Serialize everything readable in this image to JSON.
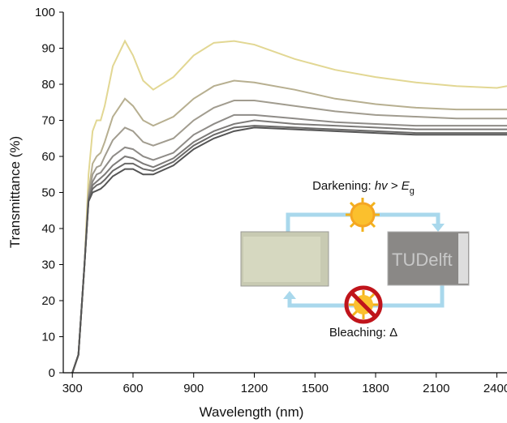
{
  "chart_data": {
    "type": "line",
    "xlabel": "Wavelength (nm)",
    "ylabel": "Transmittance (%)",
    "x": [
      300,
      330,
      360,
      380,
      400,
      420,
      440,
      460,
      500,
      560,
      600,
      650,
      700,
      800,
      900,
      1000,
      1100,
      1200,
      1400,
      1600,
      1800,
      2000,
      2200,
      2400,
      2450
    ],
    "series": [
      {
        "color": "#e2d793",
        "values": [
          0,
          5,
          30,
          55,
          67,
          70,
          70,
          74,
          85,
          92,
          88,
          81,
          78.5,
          82,
          88,
          91.5,
          92,
          91,
          87,
          84,
          82,
          80.5,
          79.5,
          79,
          79.5
        ]
      },
      {
        "color": "#b7af90",
        "values": [
          0,
          5,
          30,
          50,
          58,
          60,
          61,
          64,
          71,
          76,
          74,
          70,
          68.5,
          71,
          76,
          79.5,
          81,
          80.5,
          78.5,
          76,
          74.5,
          73.5,
          73,
          73,
          73
        ]
      },
      {
        "color": "#a19c8f",
        "values": [
          0,
          5,
          30,
          49,
          55,
          57,
          57.5,
          60,
          64.5,
          68,
          67,
          64,
          63,
          65,
          70,
          73.5,
          75.5,
          75.5,
          74,
          72.5,
          71.5,
          71,
          70.5,
          70.5,
          70.5
        ]
      },
      {
        "color": "#8e8b87",
        "values": [
          0,
          5,
          30,
          48.5,
          53,
          55,
          55.5,
          57,
          60,
          62.5,
          62,
          60,
          59,
          61,
          66,
          69,
          71.5,
          71.5,
          70.5,
          69.5,
          69,
          68.5,
          68.5,
          68.5,
          68.5
        ]
      },
      {
        "color": "#7c7a78",
        "values": [
          0,
          5,
          30,
          48,
          52,
          53,
          54,
          55,
          57.5,
          60,
          59.5,
          58,
          57,
          59.5,
          64,
          67,
          69,
          70,
          69,
          68.5,
          68,
          67.5,
          67.5,
          67.5,
          67.5
        ]
      },
      {
        "color": "#6a6968",
        "values": [
          0,
          5,
          30,
          48,
          51,
          52,
          52.5,
          53.5,
          56,
          58,
          58,
          56.5,
          56,
          58.5,
          63,
          66,
          68,
          68.5,
          68,
          67.5,
          67,
          66.5,
          66.5,
          66.5,
          66.5
        ]
      },
      {
        "color": "#555555",
        "values": [
          0,
          5,
          30,
          47.5,
          50,
          50.5,
          51,
          52,
          54.5,
          56.5,
          56.5,
          55,
          55,
          57.5,
          62,
          65,
          67,
          68,
          67.5,
          67,
          66.5,
          66,
          66,
          66,
          66
        ]
      }
    ],
    "xlim": [
      255,
      2450
    ],
    "xticks": [
      300,
      600,
      900,
      1200,
      1500,
      1800,
      2100,
      2400
    ],
    "ylim": [
      0,
      100
    ],
    "yticks": [
      0,
      10,
      20,
      30,
      40,
      50,
      60,
      70,
      80,
      90,
      100
    ],
    "annotations": {
      "darkening": [
        "Darkening: ",
        "hv",
        " > ",
        "E",
        "g"
      ],
      "bleaching": "Bleaching: Δ",
      "logo": "TUDelft"
    }
  }
}
